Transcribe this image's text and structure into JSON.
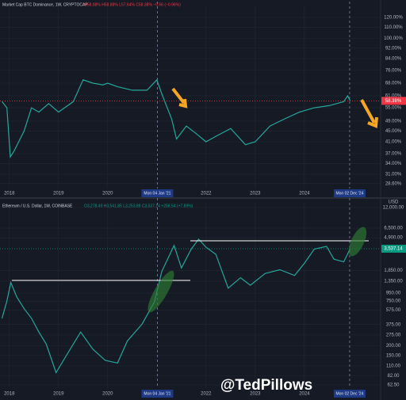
{
  "chart_data": [
    {
      "type": "line",
      "title": "Market Cap BTC Dominance, 1W, CRYPTOCAP",
      "ohlc": "O58.88% H58.88% L57.64% C58.38% −0.56 (−0.96%)",
      "log": true,
      "ylim": [
        27.4,
        132
      ],
      "xlim": [
        2017.81,
        2025.55
      ],
      "yticks": [
        {
          "value": 120,
          "label": "120.00%"
        },
        {
          "value": 110,
          "label": "110.00%"
        },
        {
          "value": 100,
          "label": "100.00%"
        },
        {
          "value": 92,
          "label": "92.00%"
        },
        {
          "value": 84,
          "label": "84.00%"
        },
        {
          "value": 76,
          "label": "76.00%"
        },
        {
          "value": 68,
          "label": "68.00%"
        },
        {
          "value": 61,
          "label": "61.00%"
        },
        {
          "value": 55,
          "label": "55.00%"
        },
        {
          "value": 49,
          "label": "49.00%"
        },
        {
          "value": 45,
          "label": "45.00%"
        },
        {
          "value": 41,
          "label": "41.00%"
        },
        {
          "value": 37,
          "label": "37.00%"
        },
        {
          "value": 34,
          "label": "34.00%"
        },
        {
          "value": 31,
          "label": "31.00%"
        },
        {
          "value": 28.6,
          "label": "28.60%"
        }
      ],
      "xticks": [
        2018,
        2019,
        2020,
        2022,
        2023,
        2024
      ],
      "xmarkers": [
        {
          "value": 2021.01,
          "label": "Mon 04 Jan '21"
        },
        {
          "value": 2024.92,
          "label": "Mon 02 Dec '24"
        }
      ],
      "last_label": "58.38%",
      "last_color": "#f23645",
      "series": [
        {
          "color": "#26a69a",
          "x": [
            2017.85,
            2017.95,
            2018.02,
            2018.1,
            2018.3,
            2018.45,
            2018.6,
            2018.8,
            2019.0,
            2019.3,
            2019.5,
            2019.7,
            2019.9,
            2020.0,
            2020.2,
            2020.5,
            2020.8,
            2021.0,
            2021.1,
            2021.3,
            2021.4,
            2021.6,
            2021.8,
            2022.0,
            2022.2,
            2022.5,
            2022.8,
            2023.0,
            2023.3,
            2023.6,
            2023.9,
            2024.2,
            2024.5,
            2024.8,
            2024.88,
            2024.93
          ],
          "values": [
            58,
            55,
            36,
            38,
            45,
            55,
            53,
            57,
            53,
            58,
            70,
            68,
            67,
            68,
            66,
            64,
            64,
            70,
            62,
            50,
            42,
            47,
            44,
            41,
            43,
            46,
            40,
            41,
            47,
            50,
            53,
            55,
            56,
            58,
            61,
            58.38
          ]
        }
      ]
    },
    {
      "type": "line",
      "title": "Ethereum / U.S. Dollar, 1W, COINBASE",
      "ohlc": "O3,278.49 H3,541.85 L3,253.89 C3,537.14 +258.54 (+7.89%)",
      "unit": "USD",
      "log": true,
      "ylim": [
        57,
        13800
      ],
      "xlim": [
        2017.81,
        2025.55
      ],
      "yticks": [
        {
          "value": 12000,
          "label": "12,000.00"
        },
        {
          "value": 6500,
          "label": "6,500.00"
        },
        {
          "value": 4900,
          "label": "4,900.00"
        },
        {
          "value": 1850,
          "label": "1,850.00"
        },
        {
          "value": 1350,
          "label": "1,350.00"
        },
        {
          "value": 950,
          "label": "950.00"
        },
        {
          "value": 750,
          "label": "750.00"
        },
        {
          "value": 575,
          "label": "575.00"
        },
        {
          "value": 375,
          "label": "375.00"
        },
        {
          "value": 275,
          "label": "275.00"
        },
        {
          "value": 200,
          "label": "200.00"
        },
        {
          "value": 150,
          "label": "150.00"
        },
        {
          "value": 110,
          "label": "110.00"
        },
        {
          "value": 82,
          "label": "82.00"
        },
        {
          "value": 62.5,
          "label": "62.50"
        }
      ],
      "xticks": [
        2018,
        2019,
        2020,
        2022,
        2023,
        2024
      ],
      "xmarkers": [
        {
          "value": 2021.01,
          "label": "Mon 04 Jan '21"
        },
        {
          "value": 2024.92,
          "label": "Mon 02 Dec '24"
        }
      ],
      "last_label": "3,537.14",
      "last_color": "#089981",
      "series": [
        {
          "color": "#26a69a",
          "x": [
            2017.85,
            2017.95,
            2018.03,
            2018.15,
            2018.3,
            2018.45,
            2018.6,
            2018.75,
            2018.95,
            2019.1,
            2019.45,
            2019.7,
            2019.95,
            2020.2,
            2020.4,
            2020.7,
            2020.95,
            2021.1,
            2021.35,
            2021.5,
            2021.7,
            2021.85,
            2022.0,
            2022.2,
            2022.45,
            2022.7,
            2022.9,
            2023.2,
            2023.5,
            2023.8,
            2024.0,
            2024.2,
            2024.45,
            2024.6,
            2024.8,
            2024.93
          ],
          "values": [
            450,
            750,
            1300,
            850,
            600,
            450,
            300,
            210,
            90,
            130,
            300,
            180,
            130,
            120,
            230,
            380,
            730,
            1800,
            3900,
            2000,
            3500,
            4700,
            3700,
            3000,
            1100,
            1500,
            1200,
            1700,
            1900,
            1600,
            2300,
            3500,
            3800,
            2600,
            2400,
            3537.14
          ]
        }
      ]
    }
  ],
  "watermark": "@TedPillows"
}
